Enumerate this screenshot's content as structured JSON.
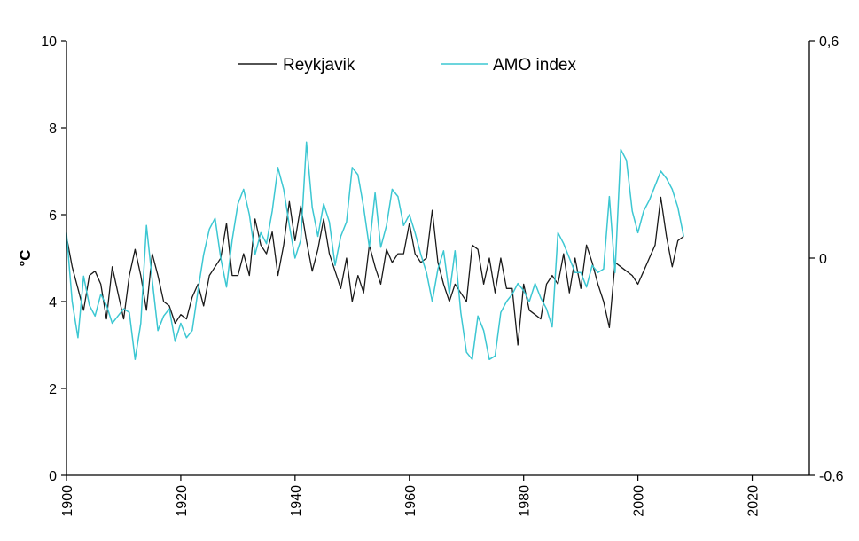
{
  "chart_data": {
    "type": "line",
    "title": "",
    "xlabel": "",
    "ylabel": "°C",
    "xlim": [
      1900,
      2030
    ],
    "ylim": [
      0,
      10
    ],
    "y2lim": [
      -0.6,
      0.6
    ],
    "grid": false,
    "legend_position": "top-center",
    "x_ticks": [
      1900,
      1920,
      1940,
      1960,
      1980,
      2000,
      2020
    ],
    "x_tick_labels": [
      "1900",
      "1920",
      "1940",
      "1960",
      "1980",
      "2000",
      "2020"
    ],
    "y_ticks": [
      0,
      2,
      4,
      6,
      8,
      10
    ],
    "y_tick_labels": [
      "0",
      "2",
      "4",
      "6",
      "8",
      "10"
    ],
    "y2_ticks": [
      -0.6,
      0,
      0.6
    ],
    "y2_tick_labels": [
      "-0,6",
      "0",
      "0,6"
    ],
    "series": [
      {
        "name": "Reykjavik",
        "axis": "left",
        "color": "#1a1a1a",
        "x": [
          1900,
          1901,
          1902,
          1903,
          1904,
          1905,
          1906,
          1907,
          1908,
          1909,
          1910,
          1911,
          1912,
          1913,
          1914,
          1915,
          1916,
          1917,
          1918,
          1919,
          1920,
          1921,
          1922,
          1923,
          1924,
          1925,
          1926,
          1927,
          1928,
          1929,
          1930,
          1931,
          1932,
          1933,
          1934,
          1935,
          1936,
          1937,
          1938,
          1939,
          1940,
          1941,
          1942,
          1943,
          1944,
          1945,
          1946,
          1947,
          1948,
          1949,
          1950,
          1951,
          1952,
          1953,
          1954,
          1955,
          1956,
          1957,
          1958,
          1959,
          1960,
          1961,
          1962,
          1963,
          1964,
          1965,
          1966,
          1967,
          1968,
          1969,
          1970,
          1971,
          1972,
          1973,
          1974,
          1975,
          1976,
          1977,
          1978,
          1979,
          1980,
          1981,
          1982,
          1983,
          1984,
          1985,
          1986,
          1987,
          1988,
          1989,
          1990,
          1991,
          1992,
          1993,
          1994,
          1995,
          1996,
          1997,
          1998,
          1999,
          2000,
          2001,
          2002,
          2003,
          2004,
          2005,
          2006,
          2007,
          2008
        ],
        "values": [
          5.5,
          4.8,
          4.3,
          3.8,
          4.6,
          4.7,
          4.4,
          3.6,
          4.8,
          4.2,
          3.6,
          4.6,
          5.2,
          4.6,
          3.8,
          5.1,
          4.6,
          4.0,
          3.9,
          3.5,
          3.7,
          3.6,
          4.1,
          4.4,
          3.9,
          4.6,
          4.8,
          5.0,
          5.8,
          4.6,
          4.6,
          5.1,
          4.6,
          5.9,
          5.3,
          5.1,
          5.6,
          4.6,
          5.3,
          6.3,
          5.4,
          6.2,
          5.4,
          4.7,
          5.2,
          5.9,
          5.1,
          4.7,
          4.3,
          5.0,
          4.0,
          4.6,
          4.2,
          5.3,
          4.8,
          4.4,
          5.2,
          4.9,
          5.1,
          5.1,
          5.8,
          5.1,
          4.9,
          5.0,
          6.1,
          4.9,
          4.4,
          4.0,
          4.4,
          4.2,
          4.0,
          5.3,
          5.2,
          4.4,
          5.0,
          4.2,
          5.0,
          4.3,
          4.3,
          3.0,
          4.4,
          3.8,
          3.7,
          3.6,
          4.4,
          4.6,
          4.4,
          5.1,
          4.2,
          5.0,
          4.3,
          5.3,
          4.9,
          4.4,
          4.0,
          3.4,
          4.9,
          4.8,
          4.7,
          4.6,
          4.4,
          4.7,
          5.0,
          5.3,
          6.4,
          5.5,
          4.8,
          5.4,
          5.5
        ],
        "style": "solid"
      },
      {
        "name": "AMO index",
        "axis": "right",
        "color": "#3cc7d2",
        "x": [
          1900,
          1901,
          1902,
          1903,
          1904,
          1905,
          1906,
          1907,
          1908,
          1909,
          1910,
          1911,
          1912,
          1913,
          1914,
          1915,
          1916,
          1917,
          1918,
          1919,
          1920,
          1921,
          1922,
          1923,
          1924,
          1925,
          1926,
          1927,
          1928,
          1929,
          1930,
          1931,
          1932,
          1933,
          1934,
          1935,
          1936,
          1937,
          1938,
          1939,
          1940,
          1941,
          1942,
          1943,
          1944,
          1945,
          1946,
          1947,
          1948,
          1949,
          1950,
          1951,
          1952,
          1953,
          1954,
          1955,
          1956,
          1957,
          1958,
          1959,
          1960,
          1961,
          1962,
          1963,
          1964,
          1965,
          1966,
          1967,
          1968,
          1969,
          1970,
          1971,
          1972,
          1973,
          1974,
          1975,
          1976,
          1977,
          1978,
          1979,
          1980,
          1981,
          1982,
          1983,
          1984,
          1985,
          1986,
          1987,
          1988,
          1989,
          1990,
          1991,
          1992,
          1993,
          1994,
          1995,
          1996,
          1997,
          1998,
          1999,
          2000,
          2001,
          2002,
          2003,
          2004,
          2005,
          2006,
          2007,
          2008
        ],
        "values": [
          0.07,
          -0.12,
          -0.22,
          -0.05,
          -0.13,
          -0.16,
          -0.1,
          -0.13,
          -0.18,
          -0.16,
          -0.14,
          -0.15,
          -0.28,
          -0.18,
          0.09,
          -0.06,
          -0.2,
          -0.16,
          -0.14,
          -0.23,
          -0.18,
          -0.22,
          -0.2,
          -0.09,
          0.01,
          0.08,
          0.11,
          0.0,
          -0.08,
          0.05,
          0.15,
          0.19,
          0.12,
          0.01,
          0.07,
          0.04,
          0.13,
          0.25,
          0.19,
          0.09,
          0.0,
          0.05,
          0.32,
          0.14,
          0.06,
          0.15,
          0.1,
          -0.02,
          0.06,
          0.1,
          0.25,
          0.23,
          0.14,
          0.03,
          0.18,
          0.03,
          0.09,
          0.19,
          0.17,
          0.09,
          0.12,
          0.07,
          0.01,
          -0.04,
          -0.12,
          -0.03,
          0.02,
          -0.1,
          0.02,
          -0.15,
          -0.26,
          -0.28,
          -0.16,
          -0.2,
          -0.28,
          -0.27,
          -0.15,
          -0.12,
          -0.1,
          -0.07,
          -0.09,
          -0.12,
          -0.07,
          -0.11,
          -0.14,
          -0.19,
          0.07,
          0.04,
          0.0,
          -0.04,
          -0.04,
          -0.08,
          -0.02,
          -0.04,
          -0.03,
          0.17,
          -0.04,
          0.3,
          0.27,
          0.13,
          0.07,
          0.13,
          0.16,
          0.2,
          0.24,
          0.22,
          0.19,
          0.14,
          0.06
        ]
      }
    ]
  }
}
